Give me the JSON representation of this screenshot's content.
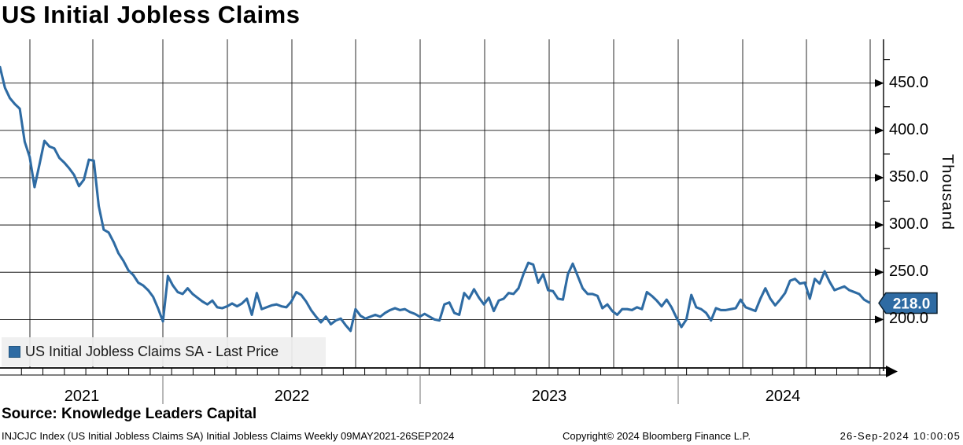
{
  "title": "US Initial Jobless Claims",
  "legend": {
    "label": "US Initial Jobless Claims SA - Last Price",
    "marker_color": "#2e6ba3"
  },
  "last_price_badge": {
    "value": "218.0",
    "bg": "#2e6ba3",
    "border": "#0c2233",
    "text_color": "#ffffff"
  },
  "y_axis": {
    "unit_label": "Thousand",
    "tick_labels": [
      "450.0",
      "400.0",
      "350.0",
      "300.0",
      "250.0",
      "200.0"
    ],
    "tick_values": [
      450,
      400,
      350,
      300,
      250,
      200
    ],
    "minor_tick_values": [
      475,
      425,
      375,
      325,
      275,
      225
    ]
  },
  "x_axis": {
    "year_labels": [
      "2021",
      "2022",
      "2023",
      "2024"
    ]
  },
  "source_line": "Source: Knowledge Leaders Capital",
  "footer": {
    "left": "INJCJC Index (US Initial Jobless Claims SA) Initial Jobless Claims  Weekly 09MAY2021-26SEP2024",
    "center": "Copyright© 2024 Bloomberg Finance L.P.",
    "right": "26-Sep-2024 10:00:05"
  },
  "chart_data": {
    "type": "line",
    "title": "US Initial Jobless Claims",
    "series_name": "US Initial Jobless Claims SA - Last Price",
    "frequency": "Weekly",
    "x_start_label": "09MAY2021",
    "x_end_label": "26SEP2024",
    "unit": "Thousand",
    "ylabel": "Thousand",
    "ylim": [
      150,
      490
    ],
    "y_ticks": [
      200,
      250,
      300,
      350,
      400,
      450
    ],
    "grid": true,
    "legend_position": "bottom-left",
    "line_color": "#2e6ba3",
    "last_value": 218.0,
    "n_points": 177,
    "values": [
      467,
      445,
      434,
      428,
      423,
      388,
      372,
      340,
      364,
      389,
      383,
      381,
      371,
      366,
      360,
      353,
      341,
      348,
      369,
      368,
      320,
      295,
      292,
      282,
      270,
      262,
      252,
      247,
      239,
      236,
      231,
      224,
      212,
      198,
      246,
      236,
      229,
      227,
      233,
      227,
      223,
      219,
      216,
      220,
      213,
      212,
      214,
      217,
      214,
      217,
      222,
      205,
      228,
      211,
      213,
      215,
      216,
      214,
      213,
      219,
      229,
      226,
      219,
      210,
      203,
      197,
      203,
      195,
      199,
      201,
      194,
      188,
      211,
      204,
      201,
      203,
      205,
      203,
      207,
      210,
      212,
      210,
      211,
      208,
      206,
      203,
      206,
      203,
      200,
      199,
      216,
      218,
      207,
      205,
      228,
      222,
      232,
      223,
      216,
      223,
      209,
      220,
      222,
      228,
      227,
      233,
      248,
      260,
      258,
      239,
      248,
      231,
      230,
      222,
      221,
      248,
      259,
      246,
      233,
      227,
      227,
      225,
      212,
      216,
      209,
      205,
      211,
      211,
      210,
      213,
      211,
      229,
      225,
      220,
      214,
      221,
      213,
      202,
      192,
      200,
      226,
      213,
      211,
      207,
      199,
      212,
      210,
      210,
      211,
      212,
      221,
      213,
      211,
      209,
      222,
      233,
      222,
      215,
      221,
      228,
      241,
      243,
      238,
      239,
      222,
      243,
      238,
      251,
      240,
      231,
      233,
      235,
      231,
      229,
      227,
      221,
      218
    ]
  }
}
